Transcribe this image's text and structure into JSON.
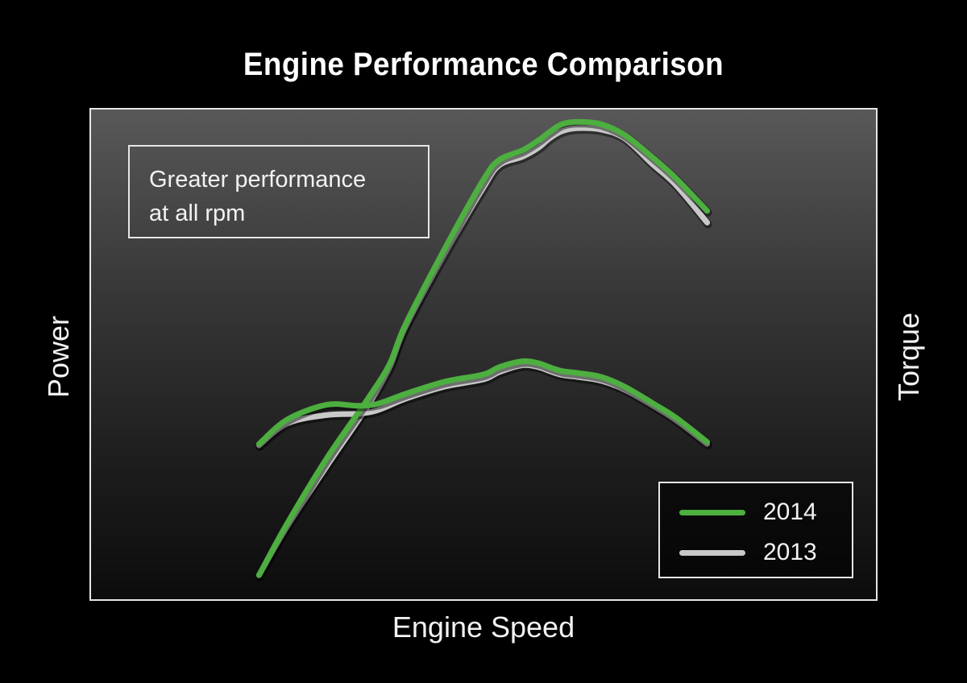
{
  "chart_data": {
    "type": "line",
    "title": "Engine Performance Comparison",
    "xlabel": "Engine Speed",
    "ylabel_left": "Power",
    "ylabel_right": "Torque",
    "xlim": [
      0,
      100
    ],
    "ylim": [
      0,
      100
    ],
    "annotation": "Greater performance\nat all rpm",
    "legend_position": "bottom-right",
    "grid": false,
    "ticks": false,
    "series": [
      {
        "name": "2014",
        "color": "#4caf3f",
        "power": {
          "x": [
            21.4,
            25,
            30,
            35,
            38,
            40,
            45,
            50,
            52,
            55,
            57,
            58.4,
            60,
            62,
            65,
            68,
            71.5,
            74.5,
            78.5
          ],
          "y": [
            4.9,
            15.5,
            28.7,
            40.3,
            47.9,
            55.9,
            71.4,
            85.7,
            89.7,
            91.7,
            93.7,
            95.4,
            97.0,
            97.5,
            97.0,
            94.8,
            90.3,
            86.0,
            79.3
          ]
        },
        "torque": {
          "x": [
            21.4,
            25,
            30,
            34,
            36.5,
            40,
            45,
            50,
            52,
            55,
            57,
            58.4,
            60,
            62,
            65,
            68,
            71.5,
            74.5,
            78.5
          ],
          "y": [
            31.7,
            36.7,
            39.7,
            39.5,
            39.9,
            41.9,
            44.4,
            45.9,
            47.4,
            48.6,
            48.2,
            47.4,
            46.6,
            46.2,
            45.4,
            43.4,
            40.1,
            37.1,
            32.1
          ]
        }
      },
      {
        "name": "2013",
        "color": "#c8c8c8",
        "power": {
          "x": [
            21.4,
            25,
            30,
            35,
            38,
            40,
            45,
            50,
            52,
            55,
            57,
            58.4,
            60,
            62,
            65,
            68,
            71.5,
            74.5,
            78.5
          ],
          "y": [
            4.9,
            14.9,
            27.1,
            38.9,
            47.2,
            55.4,
            70.4,
            84.1,
            88.6,
            90.4,
            92.2,
            94.1,
            95.6,
            96.2,
            95.9,
            94.1,
            88.9,
            84.6,
            76.9
          ]
        },
        "torque": {
          "x": [
            21.4,
            25,
            30,
            34,
            36.5,
            40,
            45,
            50,
            52,
            55,
            57,
            58.4,
            60,
            62,
            65,
            68,
            71.5,
            74.5,
            78.5
          ],
          "y": [
            31.4,
            35.9,
            37.6,
            37.9,
            38.6,
            40.9,
            43.4,
            44.9,
            46.4,
            47.8,
            47.4,
            46.6,
            45.8,
            45.4,
            44.6,
            42.8,
            39.6,
            36.6,
            31.7
          ]
        }
      }
    ]
  }
}
